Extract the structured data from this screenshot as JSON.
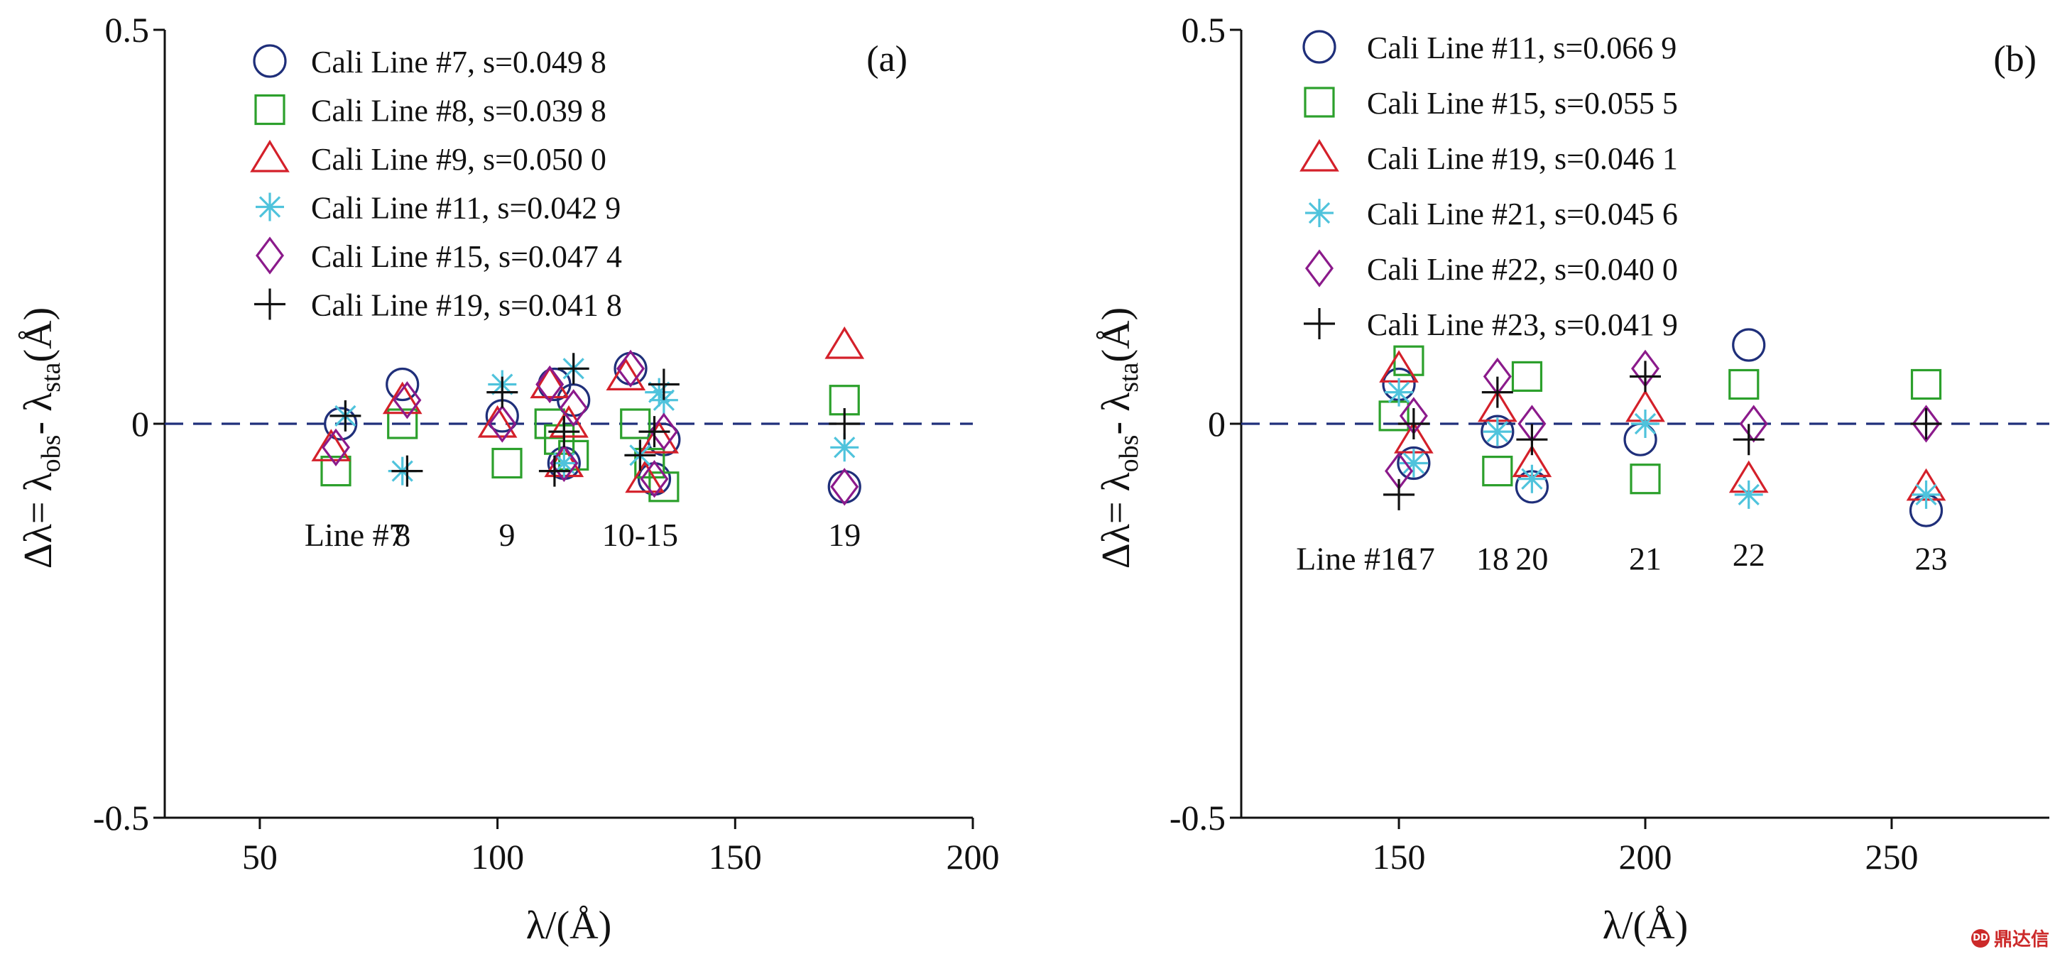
{
  "watermark": {
    "text": "鼎达信",
    "badge": "DD"
  },
  "chart_data": [
    {
      "type": "scatter",
      "panel_label": "(a)",
      "xlabel": "λ/(Å)",
      "ylabel": {
        "main": "Δλ= λ",
        "sub1": "obs",
        "mid": "- λ",
        "sub2": "sta",
        "tail": "(Å)"
      },
      "xlim": [
        30,
        200
      ],
      "ylim": [
        -0.5,
        0.5
      ],
      "xticks": [
        50,
        100,
        150,
        200
      ],
      "xtick_labels": [
        "50",
        "100",
        "150",
        "200"
      ],
      "yticks": [
        0.5,
        0,
        -0.5
      ],
      "ytick_labels": [
        "0.5",
        "0",
        "-0.5"
      ],
      "zero_line": true,
      "series": [
        {
          "name": "Cali Line #7, s=0.049 8",
          "marker": "circle",
          "color": "#1f2f7a",
          "points": [
            [
              67,
              0.0
            ],
            [
              80,
              0.05
            ],
            [
              101,
              0.01
            ],
            [
              112,
              0.05
            ],
            [
              114,
              -0.05
            ],
            [
              116,
              0.03
            ],
            [
              128,
              0.07
            ],
            [
              133,
              -0.07
            ],
            [
              135,
              -0.02
            ],
            [
              173,
              -0.08
            ]
          ]
        },
        {
          "name": "Cali Line #8, s=0.039 8",
          "marker": "square",
          "color": "#2ca02c",
          "points": [
            [
              66,
              -0.06
            ],
            [
              80,
              0.0
            ],
            [
              102,
              -0.05
            ],
            [
              111,
              0.0
            ],
            [
              113,
              -0.02
            ],
            [
              116,
              -0.04
            ],
            [
              129,
              0.0
            ],
            [
              132,
              -0.05
            ],
            [
              135,
              -0.08
            ],
            [
              173,
              0.03
            ]
          ]
        },
        {
          "name": "Cali Line #9, s=0.050 0",
          "marker": "triangle",
          "color": "#d4202a",
          "points": [
            [
              65,
              -0.03
            ],
            [
              80,
              0.03
            ],
            [
              100,
              0.0
            ],
            [
              111,
              0.05
            ],
            [
              114,
              -0.05
            ],
            [
              115,
              0.0
            ],
            [
              127,
              0.06
            ],
            [
              131,
              -0.07
            ],
            [
              134,
              -0.02
            ],
            [
              173,
              0.1
            ]
          ]
        },
        {
          "name": "Cali Line #11, s=0.042 9",
          "marker": "asterisk",
          "color": "#4fc3dc",
          "points": [
            [
              68,
              0.01
            ],
            [
              80,
              -0.06
            ],
            [
              101,
              0.05
            ],
            [
              114,
              -0.05
            ],
            [
              116,
              0.07
            ],
            [
              130,
              -0.04
            ],
            [
              134,
              0.04
            ],
            [
              135,
              0.03
            ],
            [
              173,
              -0.03
            ]
          ]
        },
        {
          "name": "Cali Line #15, s=0.047 4",
          "marker": "diamond",
          "color": "#8b1a8b",
          "points": [
            [
              66,
              -0.03
            ],
            [
              81,
              0.03
            ],
            [
              101,
              0.0
            ],
            [
              111,
              0.05
            ],
            [
              114,
              -0.05
            ],
            [
              116,
              0.02
            ],
            [
              128,
              0.07
            ],
            [
              133,
              -0.07
            ],
            [
              135,
              -0.01
            ],
            [
              173,
              -0.08
            ]
          ]
        },
        {
          "name": "Cali Line #19, s=0.041 8",
          "marker": "plus",
          "color": "#111111",
          "points": [
            [
              68,
              0.01
            ],
            [
              81,
              -0.06
            ],
            [
              101,
              0.04
            ],
            [
              112,
              -0.06
            ],
            [
              114,
              -0.01
            ],
            [
              116,
              0.07
            ],
            [
              130,
              -0.04
            ],
            [
              133,
              -0.01
            ],
            [
              135,
              0.05
            ],
            [
              173,
              0.0
            ]
          ]
        }
      ],
      "annotations": [
        {
          "text": "Line #7",
          "x": 70,
          "y": -0.155
        },
        {
          "text": "8",
          "x": 80,
          "y": -0.155
        },
        {
          "text": "9",
          "x": 102,
          "y": -0.155
        },
        {
          "text": "10-15",
          "x": 130,
          "y": -0.155
        },
        {
          "text": "19",
          "x": 173,
          "y": -0.155
        }
      ]
    },
    {
      "type": "scatter",
      "panel_label": "(b)",
      "xlabel": "λ/(Å)",
      "ylabel": {
        "main": "Δλ= λ",
        "sub1": "obs",
        "mid": "- λ",
        "sub2": "sta",
        "tail": "(Å)"
      },
      "xlim": [
        118,
        282
      ],
      "ylim": [
        -0.5,
        0.5
      ],
      "xticks": [
        150,
        200,
        250
      ],
      "xtick_labels": [
        "150",
        "200",
        "250"
      ],
      "yticks": [
        0.5,
        0,
        -0.5
      ],
      "ytick_labels": [
        "0.5",
        "0",
        "-0.5"
      ],
      "zero_line": true,
      "series": [
        {
          "name": "Cali Line #11, s=0.066 9",
          "marker": "circle",
          "color": "#1f2f7a",
          "points": [
            [
              150,
              0.05
            ],
            [
              153,
              -0.05
            ],
            [
              170,
              -0.01
            ],
            [
              177,
              -0.08
            ],
            [
              199,
              -0.02
            ],
            [
              221,
              0.1
            ],
            [
              257,
              -0.11
            ]
          ]
        },
        {
          "name": "Cali Line #15, s=0.055 5",
          "marker": "square",
          "color": "#2ca02c",
          "points": [
            [
              149,
              0.01
            ],
            [
              152,
              0.08
            ],
            [
              170,
              -0.06
            ],
            [
              176,
              0.06
            ],
            [
              200,
              -0.07
            ],
            [
              220,
              0.05
            ],
            [
              257,
              0.05
            ]
          ]
        },
        {
          "name": "Cali Line #19, s=0.046 1",
          "marker": "triangle",
          "color": "#d4202a",
          "points": [
            [
              150,
              0.07
            ],
            [
              153,
              -0.02
            ],
            [
              170,
              0.02
            ],
            [
              177,
              -0.05
            ],
            [
              200,
              0.02
            ],
            [
              221,
              -0.07
            ],
            [
              257,
              -0.08
            ]
          ]
        },
        {
          "name": "Cali Line #21, s=0.045 6",
          "marker": "asterisk",
          "color": "#4fc3dc",
          "points": [
            [
              150,
              0.04
            ],
            [
              153,
              -0.05
            ],
            [
              170,
              -0.01
            ],
            [
              177,
              -0.07
            ],
            [
              200,
              0.0
            ],
            [
              221,
              -0.09
            ],
            [
              257,
              -0.09
            ]
          ]
        },
        {
          "name": "Cali Line #22, s=0.040 0",
          "marker": "diamond",
          "color": "#8b1a8b",
          "points": [
            [
              150,
              -0.06
            ],
            [
              153,
              0.01
            ],
            [
              170,
              0.06
            ],
            [
              177,
              0.0
            ],
            [
              200,
              0.07
            ],
            [
              222,
              0.0
            ],
            [
              257,
              0.0
            ]
          ]
        },
        {
          "name": "Cali Line #23, s=0.041 9",
          "marker": "plus",
          "color": "#111111",
          "points": [
            [
              150,
              -0.09
            ],
            [
              153,
              0.0
            ],
            [
              170,
              0.04
            ],
            [
              177,
              -0.02
            ],
            [
              200,
              0.06
            ],
            [
              221,
              -0.02
            ],
            [
              257,
              0.0
            ]
          ]
        }
      ],
      "annotations": [
        {
          "text": "Line #16",
          "x": 141,
          "y": -0.185
        },
        {
          "text": "17",
          "x": 154,
          "y": -0.185
        },
        {
          "text": "18",
          "x": 169,
          "y": -0.185
        },
        {
          "text": "20",
          "x": 177,
          "y": -0.185
        },
        {
          "text": "21",
          "x": 200,
          "y": -0.185
        },
        {
          "text": "22",
          "x": 221,
          "y": -0.18
        },
        {
          "text": "23",
          "x": 258,
          "y": -0.185
        }
      ]
    }
  ]
}
